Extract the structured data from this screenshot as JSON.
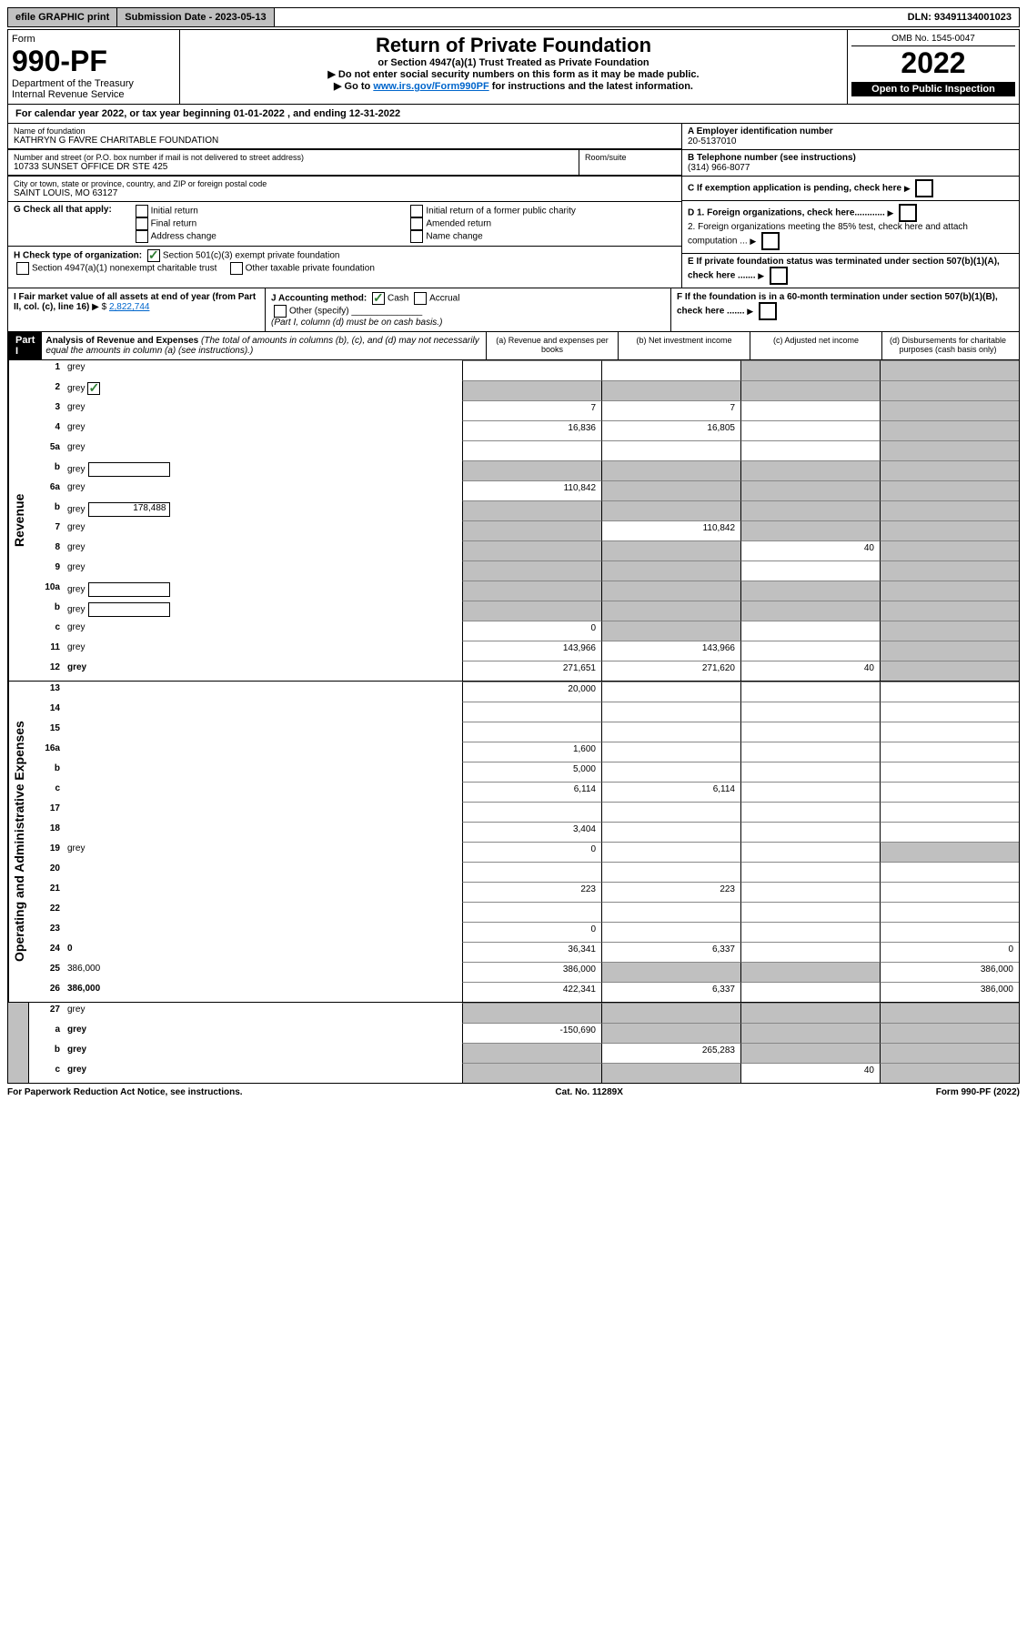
{
  "topbar": {
    "efile": "efile GRAPHIC print",
    "submission": "Submission Date - 2023-05-13",
    "dln": "DLN: 93491134001023"
  },
  "header": {
    "form_label": "Form",
    "form_number": "990-PF",
    "dept": "Department of the Treasury",
    "irs": "Internal Revenue Service",
    "title": "Return of Private Foundation",
    "subtitle": "or Section 4947(a)(1) Trust Treated as Private Foundation",
    "note1": "▶ Do not enter social security numbers on this form as it may be made public.",
    "note2_pre": "▶ Go to ",
    "note2_link": "www.irs.gov/Form990PF",
    "note2_post": " for instructions and the latest information.",
    "omb": "OMB No. 1545-0047",
    "year": "2022",
    "inspection": "Open to Public Inspection"
  },
  "cal_year": "For calendar year 2022, or tax year beginning 01-01-2022             , and ending 12-31-2022",
  "foundation": {
    "name_label": "Name of foundation",
    "name": "KATHRYN G FAVRE CHARITABLE FOUNDATION",
    "addr_label": "Number and street (or P.O. box number if mail is not delivered to street address)",
    "addr": "10733 SUNSET OFFICE DR STE 425",
    "room_label": "Room/suite",
    "city_label": "City or town, state or province, country, and ZIP or foreign postal code",
    "city": "SAINT LOUIS, MO  63127"
  },
  "right_info": {
    "a_label": "A Employer identification number",
    "a_val": "20-5137010",
    "b_label": "B Telephone number (see instructions)",
    "b_val": "(314) 966-8077",
    "c_label": "C If exemption application is pending, check here",
    "d1": "D 1. Foreign organizations, check here............",
    "d2": "2. Foreign organizations meeting the 85% test, check here and attach computation ...",
    "e": "E  If private foundation status was terminated under section 507(b)(1)(A), check here .......",
    "f": "F  If the foundation is in a 60-month termination under section 507(b)(1)(B), check here ......."
  },
  "g": {
    "label": "G Check all that apply:",
    "opts": [
      "Initial return",
      "Final return",
      "Address change",
      "Initial return of a former public charity",
      "Amended return",
      "Name change"
    ]
  },
  "h": {
    "label": "H Check type of organization:",
    "opt1": "Section 501(c)(3) exempt private foundation",
    "opt2": "Section 4947(a)(1) nonexempt charitable trust",
    "opt3": "Other taxable private foundation"
  },
  "i": {
    "label": "I Fair market value of all assets at end of year (from Part II, col. (c), line 16)",
    "val": "2,822,744"
  },
  "j": {
    "label": "J Accounting method:",
    "cash": "Cash",
    "accrual": "Accrual",
    "other": "Other (specify)",
    "note": "(Part I, column (d) must be on cash basis.)"
  },
  "part1": {
    "label": "Part I",
    "title": "Analysis of Revenue and Expenses",
    "title_note": "(The total of amounts in columns (b), (c), and (d) may not necessarily equal the amounts in column (a) (see instructions).)",
    "col_a": "(a)   Revenue and expenses per books",
    "col_b": "(b)   Net investment income",
    "col_c": "(c)   Adjusted net income",
    "col_d": "(d)   Disbursements for charitable purposes (cash basis only)"
  },
  "sections": {
    "revenue": "Revenue",
    "opex": "Operating and Administrative Expenses"
  },
  "lines": [
    {
      "n": "1",
      "d": "grey",
      "a": "",
      "b": "",
      "c": "grey"
    },
    {
      "n": "2",
      "d": "grey",
      "a": "grey",
      "b": "grey",
      "c": "grey",
      "dots": true,
      "checked": true
    },
    {
      "n": "3",
      "d": "grey",
      "a": "7",
      "b": "7",
      "c": ""
    },
    {
      "n": "4",
      "d": "grey",
      "a": "16,836",
      "b": "16,805",
      "c": "",
      "dots": true
    },
    {
      "n": "5a",
      "d": "grey",
      "a": "",
      "b": "",
      "c": "",
      "dots": true
    },
    {
      "n": "b",
      "d": "grey",
      "a": "grey",
      "b": "grey",
      "c": "grey",
      "inner": ""
    },
    {
      "n": "6a",
      "d": "grey",
      "a": "110,842",
      "b": "grey",
      "c": "grey"
    },
    {
      "n": "b",
      "d": "grey",
      "a": "grey",
      "b": "grey",
      "c": "grey",
      "inner": "178,488"
    },
    {
      "n": "7",
      "d": "grey",
      "a": "grey",
      "b": "110,842",
      "c": "grey",
      "dots": true
    },
    {
      "n": "8",
      "d": "grey",
      "a": "grey",
      "b": "grey",
      "c": "40",
      "dots": true
    },
    {
      "n": "9",
      "d": "grey",
      "a": "grey",
      "b": "grey",
      "c": "",
      "dots": true
    },
    {
      "n": "10a",
      "d": "grey",
      "a": "grey",
      "b": "grey",
      "c": "grey",
      "inner": ""
    },
    {
      "n": "b",
      "d": "grey",
      "a": "grey",
      "b": "grey",
      "c": "grey",
      "inner": "",
      "dots": true
    },
    {
      "n": "c",
      "d": "grey",
      "a": "0",
      "b": "grey",
      "c": "",
      "dots": true
    },
    {
      "n": "11",
      "d": "grey",
      "a": "143,966",
      "b": "143,966",
      "c": "",
      "dots": true
    },
    {
      "n": "12",
      "d": "grey",
      "a": "271,651",
      "b": "271,620",
      "c": "40",
      "bold": true,
      "dots": true
    }
  ],
  "oplines": [
    {
      "n": "13",
      "d": "",
      "a": "20,000",
      "b": "",
      "c": ""
    },
    {
      "n": "14",
      "d": "",
      "a": "",
      "b": "",
      "c": "",
      "dots": true
    },
    {
      "n": "15",
      "d": "",
      "a": "",
      "b": "",
      "c": "",
      "dots": true
    },
    {
      "n": "16a",
      "d": "",
      "a": "1,600",
      "b": "",
      "c": "",
      "dots": true
    },
    {
      "n": "b",
      "d": "",
      "a": "5,000",
      "b": "",
      "c": "",
      "dots": true
    },
    {
      "n": "c",
      "d": "",
      "a": "6,114",
      "b": "6,114",
      "c": "",
      "dots": true
    },
    {
      "n": "17",
      "d": "",
      "a": "",
      "b": "",
      "c": "",
      "dots": true
    },
    {
      "n": "18",
      "d": "",
      "a": "3,404",
      "b": "",
      "c": "",
      "dots": true
    },
    {
      "n": "19",
      "d": "grey",
      "a": "0",
      "b": "",
      "c": "",
      "dots": true
    },
    {
      "n": "20",
      "d": "",
      "a": "",
      "b": "",
      "c": "",
      "dots": true
    },
    {
      "n": "21",
      "d": "",
      "a": "223",
      "b": "223",
      "c": "",
      "dots": true
    },
    {
      "n": "22",
      "d": "",
      "a": "",
      "b": "",
      "c": "",
      "dots": true
    },
    {
      "n": "23",
      "d": "",
      "a": "0",
      "b": "",
      "c": "",
      "dots": true
    },
    {
      "n": "24",
      "d": "0",
      "a": "36,341",
      "b": "6,337",
      "c": "",
      "bold": true,
      "dots": true
    },
    {
      "n": "25",
      "d": "386,000",
      "a": "386,000",
      "b": "grey",
      "c": "grey",
      "dots": true
    },
    {
      "n": "26",
      "d": "386,000",
      "a": "422,341",
      "b": "6,337",
      "c": "",
      "bold": true
    }
  ],
  "bottomlines": [
    {
      "n": "27",
      "d": "grey",
      "a": "grey",
      "b": "grey",
      "c": "grey"
    },
    {
      "n": "a",
      "d": "grey",
      "a": "-150,690",
      "b": "grey",
      "c": "grey",
      "bold": true
    },
    {
      "n": "b",
      "d": "grey",
      "a": "grey",
      "b": "265,283",
      "c": "grey",
      "bold": true
    },
    {
      "n": "c",
      "d": "grey",
      "a": "grey",
      "b": "grey",
      "c": "40",
      "bold": true,
      "dots": true
    }
  ],
  "footer": {
    "left": "For Paperwork Reduction Act Notice, see instructions.",
    "mid": "Cat. No. 11289X",
    "right": "Form 990-PF (2022)"
  }
}
